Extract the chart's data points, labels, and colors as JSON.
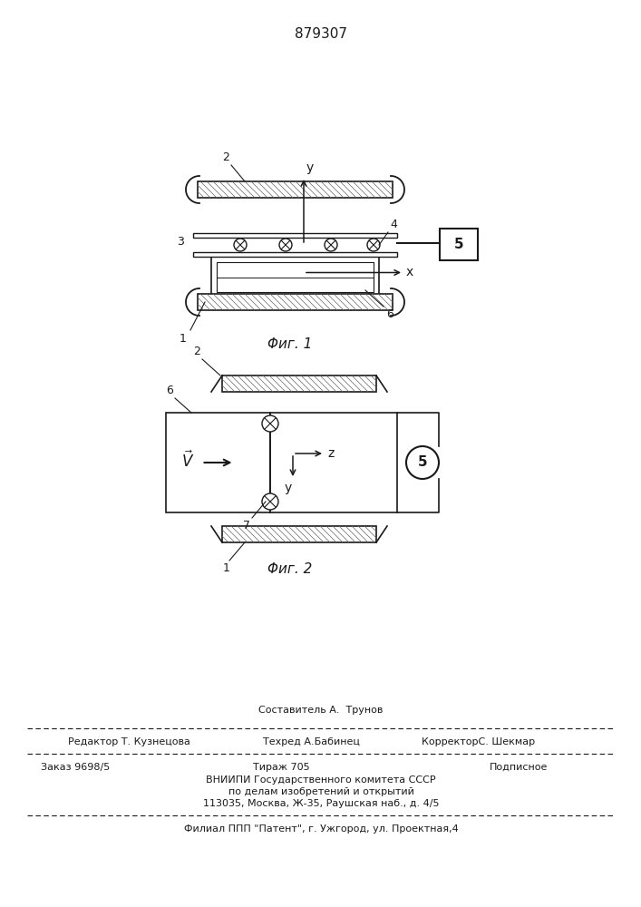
{
  "patent_number": "879307",
  "fig1_caption": "Φиг. 1",
  "fig2_caption": "Φиг. 2",
  "footer_line1": "Составитель А.  Трунов",
  "footer_line2_left": "Редактор Т. Кузнецова",
  "footer_line2_mid": "Техред А.Бабинец",
  "footer_line2_right": "КорректорС. Шекмар",
  "footer_line3_left": "Заказ 9698/5",
  "footer_line3_mid": "Тираж 705",
  "footer_line3_right": "Подписное",
  "footer_line4": "ВНИИПИ Государственного комитета СССР",
  "footer_line5": "по делам изобретений и открытий",
  "footer_line6": "113035, Москва, Ж-35, Раушская наб., д. 4/5",
  "footer_line7": "Филиал ППП \"Патент\", г. Ужгород, ул. Проектная,4",
  "bg_color": "#ffffff"
}
